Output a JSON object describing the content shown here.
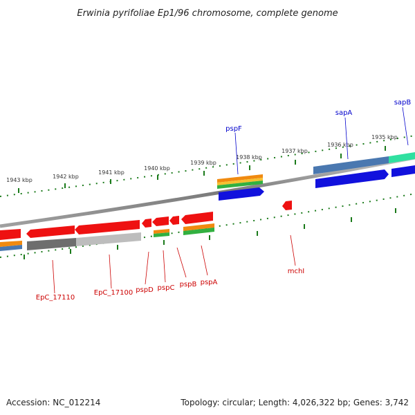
{
  "title": "Erwinia pyrifoliae Ep1/96 chromosome, complete genome",
  "footer": {
    "accession": "Accession: NC_012214",
    "summary": "Topology: circular; Length: 4,026,322 bp; Genes: 3,742"
  },
  "ruler_labels": [
    "1943 kbp",
    "1942 kbp",
    "1941 kbp",
    "1940 kbp",
    "1939 kbp",
    "1938 kbp",
    "1937 kbp",
    "1936 kbp",
    "1935 kbp"
  ],
  "gene_labels_forward": [
    "pspF",
    "sapA",
    "sapB"
  ],
  "gene_labels_reverse": [
    "EpC_17110",
    "EpC_17100",
    "pspD",
    "pspC",
    "pspB",
    "pspA",
    "mchI"
  ],
  "colors": {
    "forward_label": "#0000cc",
    "reverse_label": "#cc0000",
    "gene_red": "#ee1111",
    "gene_blue": "#1111dd",
    "tick_green": "#1a7a1a",
    "backbone": "#8a8a8a"
  }
}
